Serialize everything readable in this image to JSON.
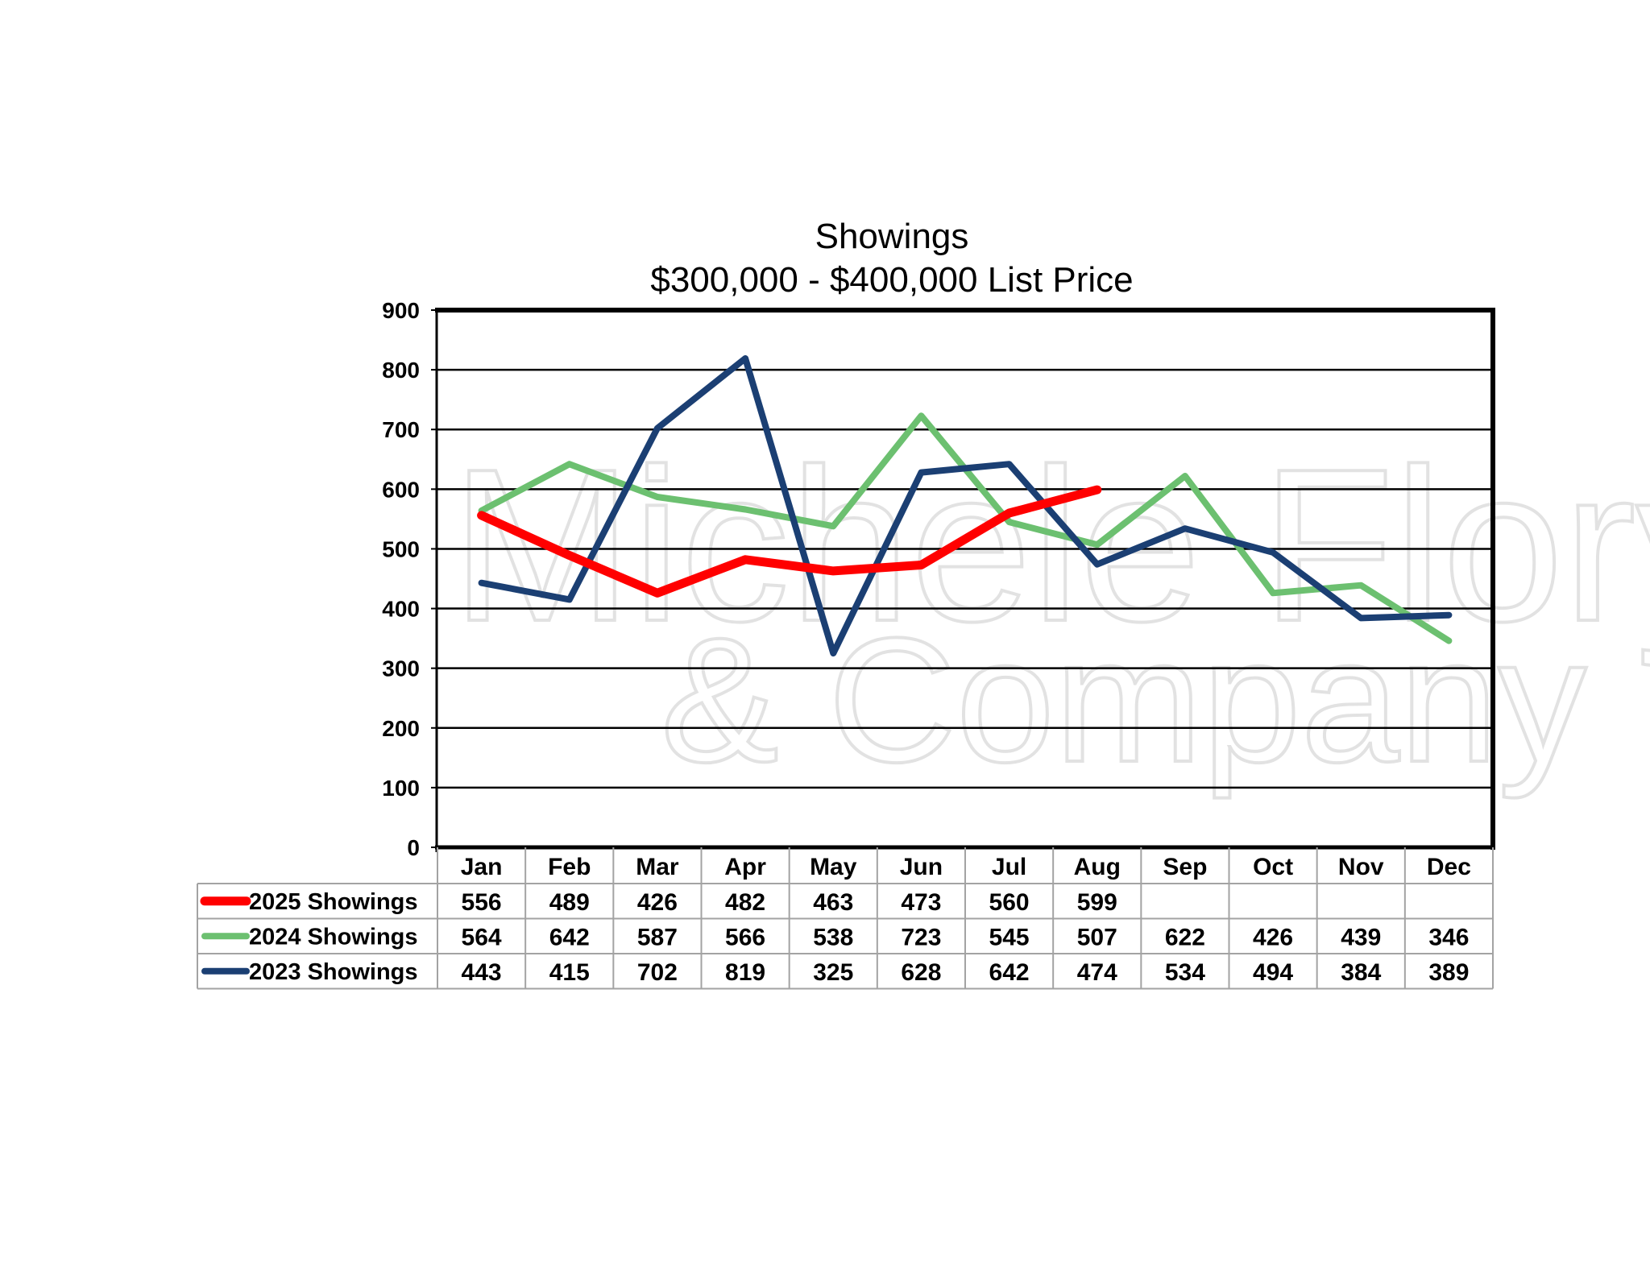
{
  "chart_data": {
    "type": "line",
    "title": "Showings",
    "subtitle": "$300,000 - $400,000 List Price",
    "categories": [
      "Jan",
      "Feb",
      "Mar",
      "Apr",
      "May",
      "Jun",
      "Jul",
      "Aug",
      "Sep",
      "Oct",
      "Nov",
      "Dec"
    ],
    "ylim": [
      0,
      900
    ],
    "yticks": [
      0,
      100,
      200,
      300,
      400,
      500,
      600,
      700,
      800,
      900
    ],
    "grid": true,
    "legend_placement": "data-table",
    "series": [
      {
        "name": "2025 Showings",
        "color": "#ff0000",
        "values": [
          556,
          489,
          426,
          482,
          463,
          473,
          560,
          599,
          null,
          null,
          null,
          null
        ]
      },
      {
        "name": "2024 Showings",
        "color": "#6cc070",
        "values": [
          564,
          642,
          587,
          566,
          538,
          723,
          545,
          507,
          622,
          426,
          439,
          346
        ]
      },
      {
        "name": "2023 Showings",
        "color": "#1b3f73",
        "values": [
          443,
          415,
          702,
          819,
          325,
          628,
          642,
          474,
          534,
          494,
          384,
          389
        ]
      }
    ],
    "watermark": "Michele Flory & Company"
  }
}
